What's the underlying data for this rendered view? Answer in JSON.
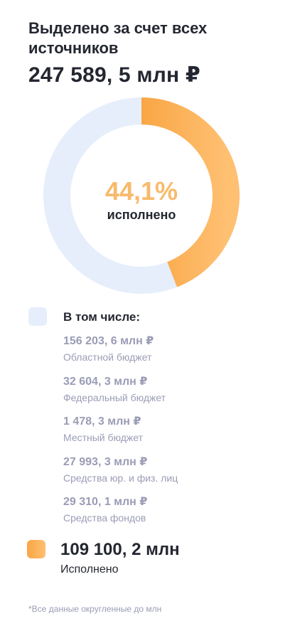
{
  "header": {
    "title": "Выделено за счет всех источников",
    "total": "247 589, 5 млн ₽"
  },
  "progress": {
    "fraction": 0.441,
    "percent_text": "44,1%",
    "label": "исполнено"
  },
  "colors": {
    "track": "#e6eefc",
    "fill_start": "#f9a645",
    "fill_end": "#ffc072",
    "text_primary": "#242731",
    "text_muted": "#9a9cb6"
  },
  "breakdown": {
    "title": "В том числе:",
    "items": [
      {
        "value": "156 203, 6 млн ₽",
        "name": "Областной бюджет"
      },
      {
        "value": "32 604, 3 млн ₽",
        "name": "Федеральный бюджет"
      },
      {
        "value": "1 478, 3 млн ₽",
        "name": "Местный бюджет"
      },
      {
        "value": "27 993, 3 млн ₽",
        "name": "Средства юр. и физ. лиц"
      },
      {
        "value": "29 310, 1 млн ₽",
        "name": "Средства фондов"
      }
    ]
  },
  "executed": {
    "value": "109 100, 2 млн",
    "label": "Исполнено"
  },
  "footnote": "*Все данные округленные до млн"
}
